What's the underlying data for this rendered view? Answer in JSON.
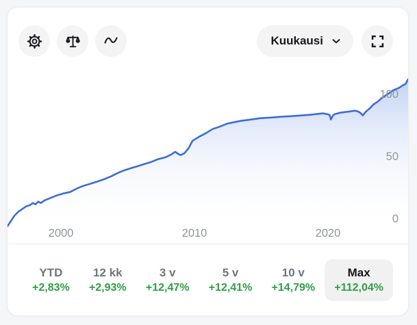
{
  "toolbar": {
    "settings_button": {
      "icon": "gear-icon"
    },
    "compare_button": {
      "icon": "scales-icon"
    },
    "chart_type_button": {
      "icon": "wave-icon"
    },
    "interval_dropdown": {
      "label": "Kuukausi",
      "icon": "chevron-down-icon"
    },
    "fullscreen_button": {
      "icon": "expand-icon"
    }
  },
  "chart_data": {
    "type": "area",
    "series_name": "cumulative-return-percent",
    "x": [
      1996.0,
      1996.3,
      1996.5,
      1996.8,
      1997.1,
      1997.4,
      1997.7,
      1997.9,
      1998.1,
      1998.3,
      1998.5,
      1998.8,
      1999.2,
      1999.7,
      2000.2,
      2000.7,
      2001.2,
      2001.7,
      2002.2,
      2002.7,
      2003.3,
      2003.8,
      2004.3,
      2004.8,
      2005.3,
      2005.8,
      2006.3,
      2006.8,
      2007.3,
      2007.9,
      2008.3,
      2008.6,
      2008.8,
      2009.0,
      2009.3,
      2009.6,
      2009.9,
      2010.4,
      2010.9,
      2011.4,
      2012.0,
      2012.5,
      2013.0,
      2013.5,
      2014.3,
      2015.0,
      2015.8,
      2016.5,
      2017.3,
      2018.1,
      2018.7,
      2019.2,
      2019.7,
      2020.0,
      2020.2,
      2020.3,
      2020.45,
      2020.6,
      2021.0,
      2021.4,
      2021.8,
      2022.1,
      2022.3,
      2022.5,
      2022.7,
      2022.9,
      2023.2,
      2023.5,
      2023.8,
      2024.1,
      2024.4,
      2024.7,
      2025.0,
      2025.4,
      2025.7,
      2025.9,
      2026.1
    ],
    "values": [
      -6.0,
      -1.1,
      2.2,
      5.5,
      7.7,
      9.9,
      11.0,
      12.6,
      11.5,
      13.7,
      12.6,
      14.8,
      16.5,
      18.7,
      20.3,
      21.4,
      24.2,
      26.4,
      28.0,
      29.7,
      31.9,
      34.1,
      36.8,
      39.0,
      40.7,
      42.3,
      44.0,
      45.6,
      47.8,
      49.5,
      51.6,
      53.8,
      52.2,
      51.1,
      52.7,
      56.6,
      62.6,
      65.9,
      68.7,
      72.0,
      74.2,
      76.4,
      77.5,
      78.6,
      79.7,
      80.8,
      81.3,
      81.9,
      82.4,
      83.0,
      83.5,
      84.1,
      84.6,
      84.1,
      83.5,
      79.7,
      83.0,
      84.1,
      85.2,
      85.7,
      86.3,
      86.8,
      86.3,
      85.2,
      83.0,
      85.7,
      88.5,
      91.8,
      93.9,
      96.7,
      98.9,
      101.1,
      103.3,
      105.0,
      107.1,
      108.2,
      112.0
    ],
    "xlim": [
      1996.0,
      2026.1
    ],
    "ylim": [
      -20,
      118
    ],
    "y_ticks": [
      100,
      50,
      0
    ],
    "x_ticks": [
      {
        "label": "2000",
        "year": 2000
      },
      {
        "label": "2010",
        "year": 2010
      },
      {
        "label": "2020",
        "year": 2020
      }
    ],
    "grid": false,
    "legend": false,
    "line_color": "#3d6cd7",
    "fill": "vertical gradient #b9cbf2 to transparent"
  },
  "stats": [
    {
      "label": "YTD",
      "value": "+2,83%",
      "selected": false
    },
    {
      "label": "12 kk",
      "value": "+2,93%",
      "selected": false
    },
    {
      "label": "3 v",
      "value": "+12,47%",
      "selected": false
    },
    {
      "label": "5 v",
      "value": "+12,41%",
      "selected": false
    },
    {
      "label": "10 v",
      "value": "+14,79%",
      "selected": false
    },
    {
      "label": "Max",
      "value": "+112,04%",
      "selected": true
    }
  ],
  "colors": {
    "positive": "#2f9e44",
    "line": "#3d6cd7",
    "button_bg": "#f4f4f5",
    "selected_stat_bg": "#f1f1f2",
    "axis_label": "#8f959d",
    "stat_label": "#70757d",
    "card_bg": "#ffffff",
    "page_bg": "#f5f6f7",
    "divider": "#ececee",
    "icon": "#17191d"
  }
}
